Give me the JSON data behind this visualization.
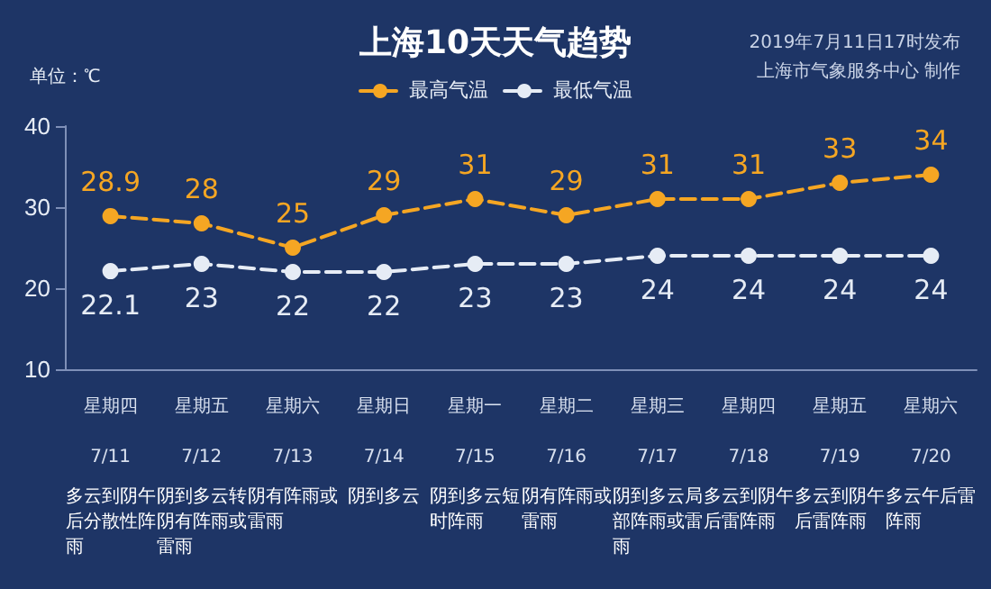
{
  "chart_data": {
    "type": "line",
    "title": "上海10天天气趋势",
    "subtitle": "2019年7月11日17时发布",
    "ylabel": "单位：℃",
    "categories": [
      "7/11",
      "7/12",
      "7/13",
      "7/14",
      "7/15",
      "7/16",
      "7/17",
      "7/18",
      "7/19",
      "7/20"
    ],
    "series": [
      {
        "name": "最高气温",
        "color": "#f5a623",
        "values": [
          28.9,
          28,
          25,
          29,
          31,
          29,
          31,
          31,
          33,
          34
        ]
      },
      {
        "name": "最低气温",
        "color": "#e6ecf5",
        "values": [
          22.1,
          23,
          22,
          22,
          23,
          23,
          24,
          24,
          24,
          24
        ]
      }
    ],
    "ylim": [
      10,
      40
    ],
    "yticks": [
      10,
      20,
      30,
      40
    ],
    "grid": false,
    "legend": "top",
    "marker": "circle",
    "line_style": "dashed",
    "data_labels": true,
    "annotations": [
      "上海市气象服务中心 制作",
      "星期四",
      "多云到阴午后分散性阵雨",
      "星期五",
      "阴到多云转阴有阵雨或雷雨",
      "星期六",
      "阴有阵雨或雷雨",
      "星期日",
      "阴到多云",
      "星期一",
      "阴到多云短时阵雨",
      "星期二",
      "阴有阵雨或雷雨",
      "星期三",
      "阴到多云局部阵雨或雷雨",
      "星期四",
      "多云到阴午后雷阵雨",
      "星期五",
      "多云到阴午后雷阵雨",
      "星期六",
      "多云午后雷阵雨"
    ]
  }
}
